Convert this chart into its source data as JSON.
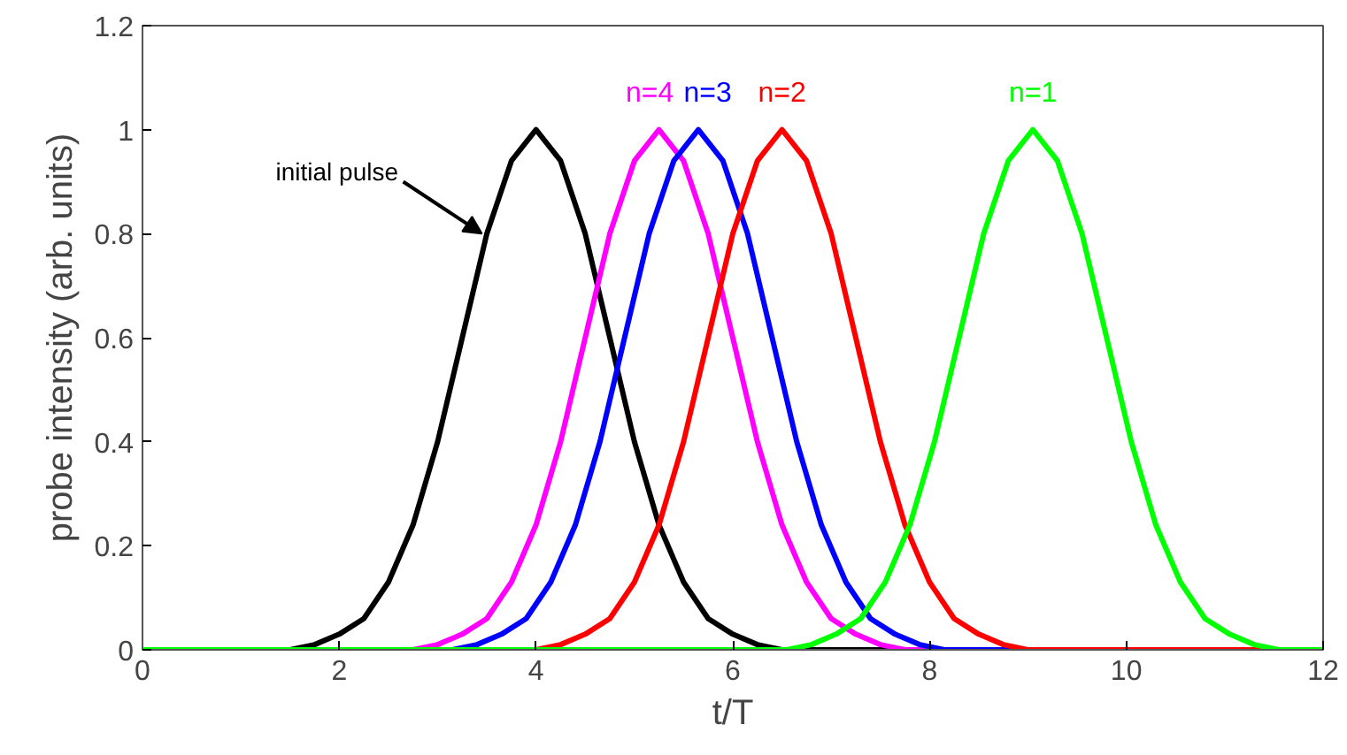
{
  "chart_data": {
    "type": "line",
    "xlabel": "t/T",
    "ylabel": "probe intensity (arb. units)",
    "xlim": [
      0,
      12
    ],
    "xticks": [
      0,
      2,
      4,
      6,
      8,
      10,
      12
    ],
    "ylim": [
      0,
      1.2
    ],
    "yticks": [
      0,
      0.2,
      0.4,
      0.6,
      0.8,
      1,
      1.2
    ],
    "marker": "none",
    "line_style": "solid",
    "series": [
      {
        "name": "initial pulse",
        "color": "#000000",
        "x": [
          0,
          1.5,
          1.75,
          2,
          2.25,
          2.5,
          2.75,
          3,
          3.25,
          3.5,
          3.75,
          4,
          4.25,
          4.5,
          4.75,
          5,
          5.25,
          5.5,
          5.75,
          6,
          6.25,
          6.5,
          12
        ],
        "values": [
          0,
          0,
          0.01,
          0.03,
          0.06,
          0.13,
          0.24,
          0.4,
          0.6,
          0.8,
          0.94,
          1,
          0.94,
          0.8,
          0.6,
          0.4,
          0.24,
          0.13,
          0.06,
          0.03,
          0.01,
          0,
          0
        ]
      },
      {
        "name": "n=4",
        "color": "#ff00ff",
        "x": [
          0,
          2.75,
          3,
          3.25,
          3.5,
          3.75,
          4,
          4.25,
          4.5,
          4.75,
          5,
          5.25,
          5.5,
          5.75,
          6,
          6.25,
          6.5,
          6.75,
          7,
          7.25,
          7.5,
          7.75,
          12
        ],
        "values": [
          0,
          0,
          0.01,
          0.03,
          0.06,
          0.13,
          0.24,
          0.4,
          0.6,
          0.8,
          0.94,
          1,
          0.94,
          0.8,
          0.6,
          0.4,
          0.24,
          0.13,
          0.06,
          0.03,
          0.01,
          0,
          0
        ]
      },
      {
        "name": "n=3",
        "color": "#0000ff",
        "x": [
          0,
          3.15,
          3.4,
          3.65,
          3.9,
          4.15,
          4.4,
          4.65,
          4.9,
          5.15,
          5.4,
          5.65,
          5.9,
          6.15,
          6.4,
          6.65,
          6.9,
          7.15,
          7.4,
          7.65,
          7.9,
          8.15,
          12
        ],
        "values": [
          0,
          0,
          0.01,
          0.03,
          0.06,
          0.13,
          0.24,
          0.4,
          0.6,
          0.8,
          0.94,
          1,
          0.94,
          0.8,
          0.6,
          0.4,
          0.24,
          0.13,
          0.06,
          0.03,
          0.01,
          0,
          0
        ]
      },
      {
        "name": "n=2",
        "color": "#ff0000",
        "x": [
          0,
          4,
          4.25,
          4.5,
          4.75,
          5,
          5.25,
          5.5,
          5.75,
          6,
          6.25,
          6.5,
          6.75,
          7,
          7.25,
          7.5,
          7.75,
          8,
          8.25,
          8.5,
          8.75,
          9,
          12
        ],
        "values": [
          0,
          0,
          0.01,
          0.03,
          0.06,
          0.13,
          0.24,
          0.4,
          0.6,
          0.8,
          0.94,
          1,
          0.94,
          0.8,
          0.6,
          0.4,
          0.24,
          0.13,
          0.06,
          0.03,
          0.01,
          0,
          0
        ]
      },
      {
        "name": "n=1",
        "color": "#00ff00",
        "x": [
          0,
          6.55,
          6.8,
          7.05,
          7.3,
          7.55,
          7.8,
          8.05,
          8.3,
          8.55,
          8.8,
          9.05,
          9.3,
          9.55,
          9.8,
          10.05,
          10.3,
          10.55,
          10.8,
          11.05,
          11.3,
          11.55,
          12
        ],
        "values": [
          0,
          0,
          0.01,
          0.03,
          0.06,
          0.13,
          0.24,
          0.4,
          0.6,
          0.8,
          0.94,
          1,
          0.94,
          0.8,
          0.6,
          0.4,
          0.24,
          0.13,
          0.06,
          0.03,
          0.01,
          0,
          0
        ]
      }
    ]
  }
}
